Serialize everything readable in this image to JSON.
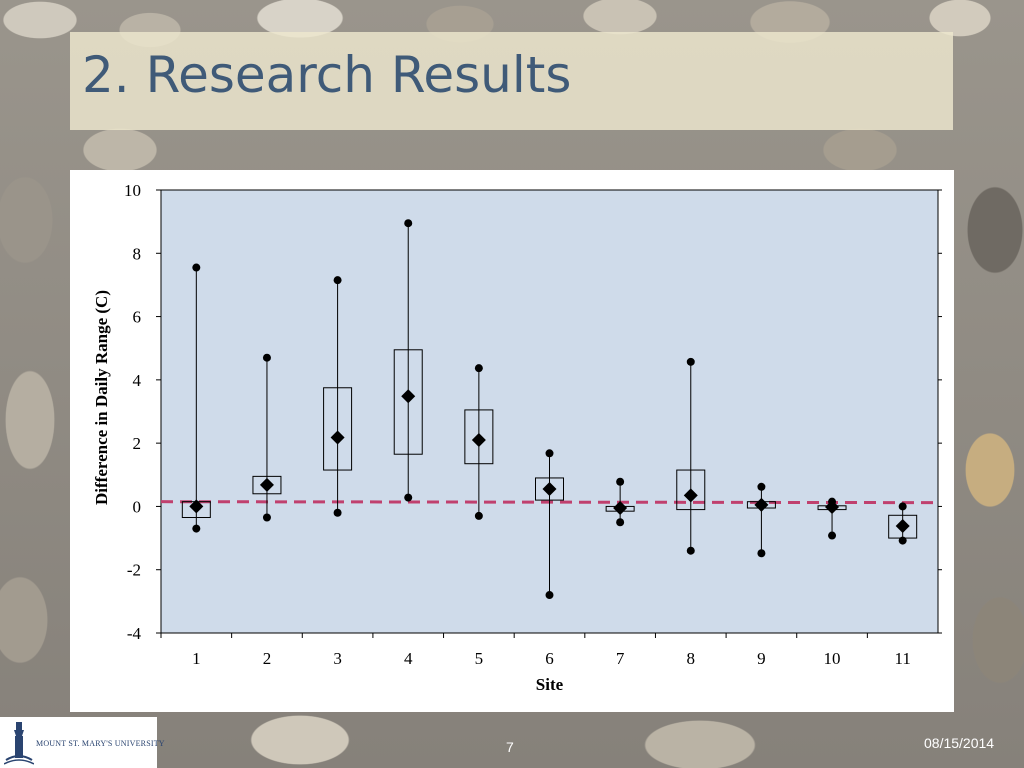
{
  "slide": {
    "title": "2. Research Results",
    "number": "7",
    "date": "08/15/2014",
    "logo_text": "MOUNT ST. MARY'S UNIVERSITY"
  },
  "colors": {
    "title_text": "#3f5a78",
    "plot_background": "#cfdbea",
    "reference_line": "#c0406e",
    "marks": "#000000"
  },
  "icons": {
    "logo": "university-tower-icon"
  },
  "chart_data": {
    "type": "boxplot",
    "title": "",
    "xlabel": "Site",
    "ylabel": "Difference in Daily Range (C)",
    "ylim": [
      -4,
      10
    ],
    "yticks": [
      -4,
      -2,
      0,
      2,
      4,
      6,
      8,
      10
    ],
    "grid": false,
    "legend": "none",
    "reference_line": {
      "y_start": 0.15,
      "y_end": 0.12,
      "style": "dashed"
    },
    "categories": [
      "1",
      "2",
      "3",
      "4",
      "5",
      "6",
      "7",
      "8",
      "9",
      "10",
      "11"
    ],
    "sites": [
      {
        "site": "1",
        "min": -0.7,
        "q1": -0.35,
        "mean": 0.0,
        "q3": 0.15,
        "max": 7.55
      },
      {
        "site": "2",
        "min": -0.35,
        "q1": 0.4,
        "mean": 0.68,
        "q3": 0.95,
        "max": 4.7
      },
      {
        "site": "3",
        "min": -0.2,
        "q1": 1.15,
        "mean": 2.18,
        "q3": 3.75,
        "max": 7.15
      },
      {
        "site": "4",
        "min": 0.28,
        "q1": 1.65,
        "mean": 3.48,
        "q3": 4.95,
        "max": 8.95
      },
      {
        "site": "5",
        "min": -0.3,
        "q1": 1.35,
        "mean": 2.1,
        "q3": 3.05,
        "max": 4.37
      },
      {
        "site": "6",
        "min": -2.8,
        "q1": 0.2,
        "mean": 0.55,
        "q3": 0.9,
        "max": 1.68
      },
      {
        "site": "7",
        "min": -0.5,
        "q1": -0.15,
        "mean": -0.05,
        "q3": 0.0,
        "max": 0.78
      },
      {
        "site": "8",
        "min": -1.4,
        "q1": -0.1,
        "mean": 0.35,
        "q3": 1.15,
        "max": 4.57
      },
      {
        "site": "9",
        "min": -1.48,
        "q1": -0.05,
        "mean": 0.05,
        "q3": 0.15,
        "max": 0.62
      },
      {
        "site": "10",
        "min": -0.92,
        "q1": -0.1,
        "mean": -0.02,
        "q3": 0.02,
        "max": 0.15
      },
      {
        "site": "11",
        "min": -1.08,
        "q1": -1.0,
        "mean": -0.62,
        "q3": -0.28,
        "max": 0.0
      }
    ]
  }
}
